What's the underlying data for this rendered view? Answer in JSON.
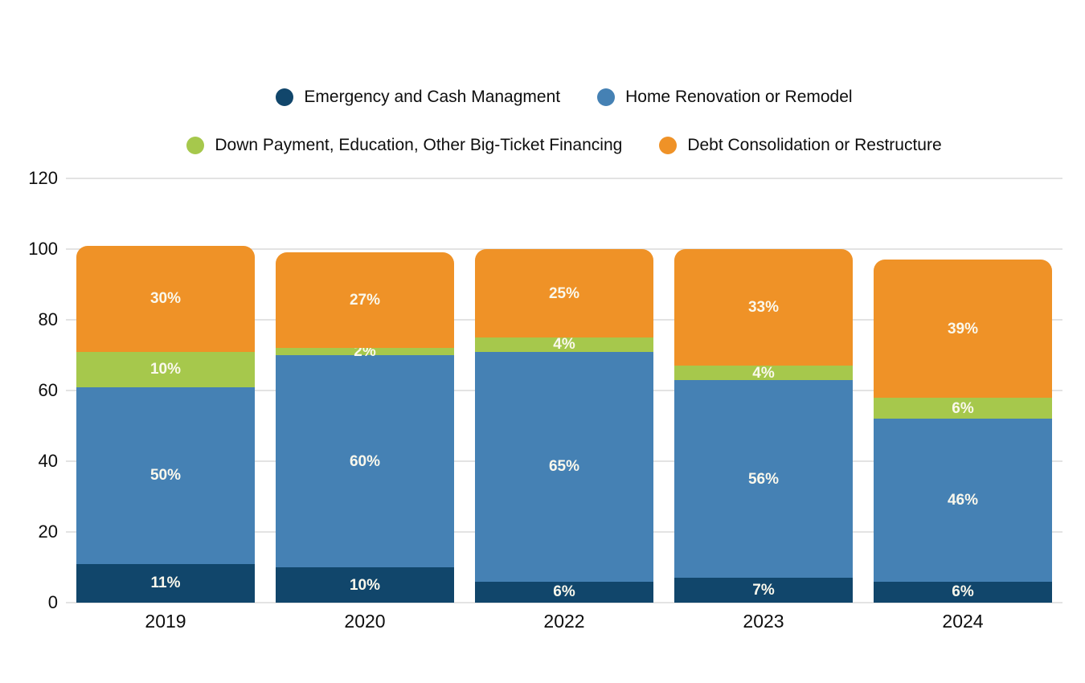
{
  "colors": {
    "background": "#FFFFFF",
    "grid": "#E3E3E3",
    "axis_text": "#0E0E0E",
    "data_label": "#FAF8EC"
  },
  "chart_data": {
    "type": "bar",
    "stacked": true,
    "orientation": "vertical",
    "categories": [
      "2019",
      "2020",
      "2022",
      "2023",
      "2024"
    ],
    "series": [
      {
        "name": "Emergency and Cash Managment",
        "color": "#11466B",
        "values": [
          11,
          10,
          6,
          7,
          6
        ]
      },
      {
        "name": "Home Renovation or Remodel",
        "color": "#4581B4",
        "values": [
          50,
          60,
          65,
          56,
          46
        ]
      },
      {
        "name": "Down Payment, Education, Other Big-Ticket Financing",
        "color": "#A6C84C",
        "values": [
          10,
          2,
          4,
          4,
          6
        ]
      },
      {
        "name": "Debt Consolidation or Restructure",
        "color": "#EF9227",
        "values": [
          30,
          27,
          25,
          33,
          39
        ]
      }
    ],
    "data_label_suffix": "%",
    "y_ticks": [
      0,
      20,
      40,
      60,
      80,
      100,
      120
    ],
    "ylim": [
      0,
      120
    ],
    "grid": "horizontal",
    "legend_position": "top",
    "legend_rows": [
      [
        0,
        1
      ],
      [
        2,
        3
      ]
    ]
  }
}
